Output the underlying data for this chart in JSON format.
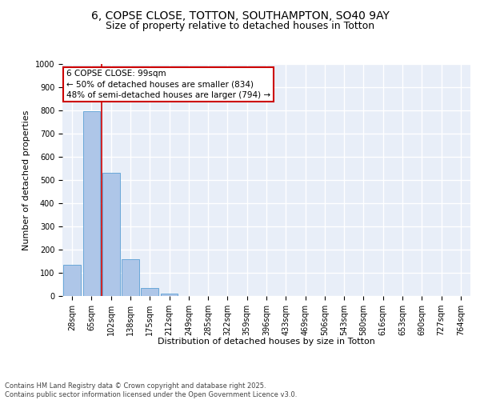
{
  "title_line1": "6, COPSE CLOSE, TOTTON, SOUTHAMPTON, SO40 9AY",
  "title_line2": "Size of property relative to detached houses in Totton",
  "xlabel": "Distribution of detached houses by size in Totton",
  "ylabel": "Number of detached properties",
  "categories": [
    "28sqm",
    "65sqm",
    "102sqm",
    "138sqm",
    "175sqm",
    "212sqm",
    "249sqm",
    "285sqm",
    "322sqm",
    "359sqm",
    "396sqm",
    "433sqm",
    "469sqm",
    "506sqm",
    "543sqm",
    "580sqm",
    "616sqm",
    "653sqm",
    "690sqm",
    "727sqm",
    "764sqm"
  ],
  "values": [
    135,
    795,
    530,
    160,
    35,
    10,
    0,
    0,
    0,
    0,
    0,
    0,
    0,
    0,
    0,
    0,
    0,
    0,
    0,
    0,
    0
  ],
  "bar_color": "#aec6e8",
  "bar_edge_color": "#5a9fd4",
  "vline_index": 1.5,
  "vline_color": "#cc0000",
  "annotation_text": "6 COPSE CLOSE: 99sqm\n← 50% of detached houses are smaller (834)\n48% of semi-detached houses are larger (794) →",
  "annotation_box_color": "#ffffff",
  "annotation_box_edge": "#cc0000",
  "ylim": [
    0,
    1000
  ],
  "yticks": [
    0,
    100,
    200,
    300,
    400,
    500,
    600,
    700,
    800,
    900,
    1000
  ],
  "background_color": "#e8eef8",
  "grid_color": "#ffffff",
  "footer_text": "Contains HM Land Registry data © Crown copyright and database right 2025.\nContains public sector information licensed under the Open Government Licence v3.0.",
  "title_fontsize": 10,
  "subtitle_fontsize": 9,
  "axis_label_fontsize": 8,
  "tick_fontsize": 7,
  "annotation_fontsize": 7.5,
  "footer_fontsize": 6
}
